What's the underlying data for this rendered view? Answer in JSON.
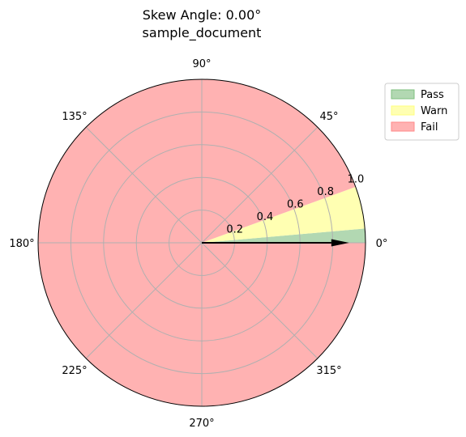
{
  "chart_data": {
    "type": "polar",
    "title": "Skew Angle: 0.00°",
    "subtitle": "sample_document",
    "angle_ticks": [
      "0°",
      "45°",
      "90°",
      "135°",
      "180°",
      "225°",
      "270°",
      "315°"
    ],
    "radial_ticks": [
      "0.2",
      "0.4",
      "0.6",
      "0.8",
      "1.0"
    ],
    "radial_values": [
      0.2,
      0.4,
      0.6,
      0.8,
      1.0
    ],
    "rlim": [
      0,
      1.0
    ],
    "grid": true,
    "legend_placement": "upper-right-outside",
    "series": [
      {
        "name": "Pass",
        "color": "#b2d8b2",
        "theta_range_deg": [
          0,
          5
        ]
      },
      {
        "name": "Warn",
        "color": "#ffffb2",
        "theta_range_deg": [
          5,
          20
        ]
      },
      {
        "name": "Fail",
        "color": "#ffb2b2",
        "theta_range_deg": [
          20,
          360
        ]
      }
    ],
    "gap_ranges_deg": [
      [
        5,
        7
      ],
      [
        20,
        22
      ]
    ],
    "skew_arrow": {
      "angle_deg": 0.0,
      "length": 0.9,
      "color": "#000000"
    }
  }
}
